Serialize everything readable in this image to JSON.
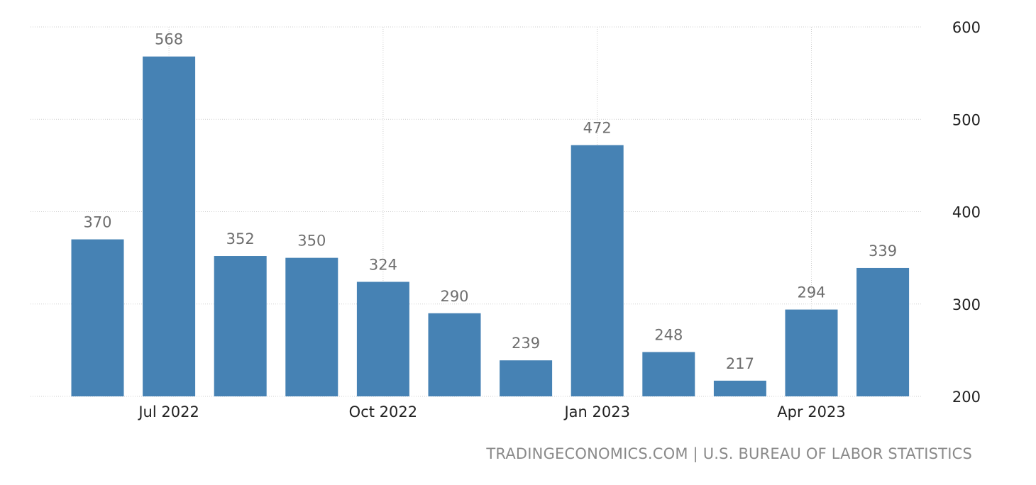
{
  "source": {
    "site": "TRADINGECONOMICS.COM",
    "separator": "|",
    "agency": "U.S. BUREAU OF LABOR STATISTICS"
  },
  "colors": {
    "bar": "#4682b4",
    "grid": "#cfcfcf",
    "data_label": "#6e6e6e",
    "axis_text": "#222222",
    "source_text": "#8a8a8a"
  },
  "chart_data": {
    "type": "bar",
    "categories": [
      "2022-06",
      "2022-07",
      "2022-08",
      "2022-09",
      "2022-10",
      "2022-11",
      "2022-12",
      "2023-01",
      "2023-02",
      "2023-03",
      "2023-04",
      "2023-05"
    ],
    "values": [
      370,
      568,
      352,
      350,
      324,
      290,
      239,
      472,
      248,
      217,
      294,
      339
    ],
    "x_tick_labels": [
      {
        "category": "2022-07",
        "label": "Jul 2022"
      },
      {
        "category": "2022-10",
        "label": "Oct 2022"
      },
      {
        "category": "2023-01",
        "label": "Jan 2023"
      },
      {
        "category": "2023-04",
        "label": "Apr 2023"
      }
    ],
    "y_ticks": [
      200,
      300,
      400,
      500,
      600
    ],
    "ylim": [
      200,
      600
    ],
    "y_axis_side": "right",
    "grid": true,
    "data_labels": true,
    "legend": "none",
    "title": "",
    "xlabel": "",
    "ylabel": ""
  }
}
